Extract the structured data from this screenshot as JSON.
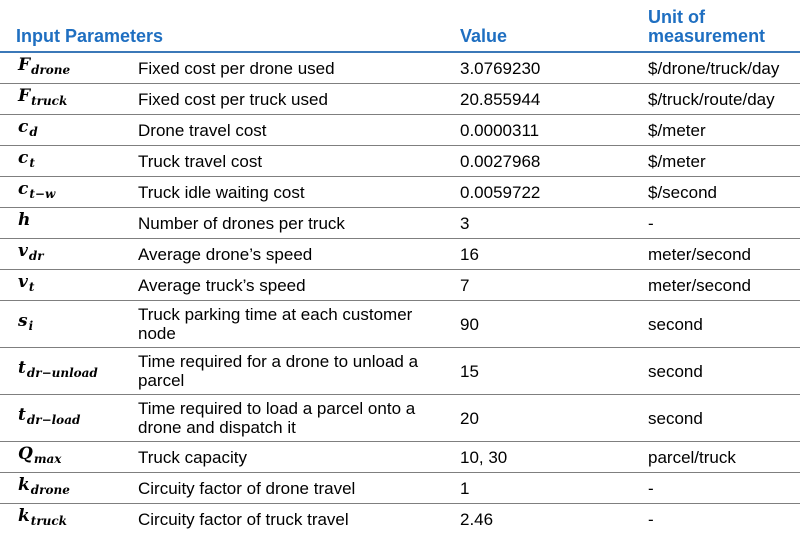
{
  "headers": {
    "param": "Input Parameters",
    "value": "Value",
    "unit": "Unit of measurement"
  },
  "rows": [
    {
      "symbol": "F",
      "sub": "drone",
      "desc": "Fixed cost per drone used",
      "value": "3.0769230",
      "unit": "$/drone/truck/day"
    },
    {
      "symbol": "F",
      "sub": "truck",
      "desc": "Fixed cost per truck used",
      "value": "20.855944",
      "unit": "$/truck/route/day"
    },
    {
      "symbol": "c",
      "sub": "d",
      "desc": "Drone travel cost",
      "value": "0.0000311",
      "unit": "$/meter"
    },
    {
      "symbol": "c",
      "sub": "t",
      "desc": "Truck travel cost",
      "value": "0.0027968",
      "unit": "$/meter"
    },
    {
      "symbol": "c",
      "sub": "t−w",
      "desc": "Truck idle waiting cost",
      "value": "0.0059722",
      "unit": "$/second"
    },
    {
      "symbol": "h",
      "sub": "",
      "desc": "Number of drones per truck",
      "value": "3",
      "unit": "-"
    },
    {
      "symbol": "v",
      "sub": "dr",
      "desc": "Average drone’s speed",
      "value": "16",
      "unit": "meter/second"
    },
    {
      "symbol": "v",
      "sub": "t",
      "desc": "Average truck’s speed",
      "value": "7",
      "unit": "meter/second"
    },
    {
      "symbol": "s",
      "sub": "i",
      "desc": "Truck parking time at each customer node",
      "value": "90",
      "unit": "second"
    },
    {
      "symbol": "t",
      "sub": "dr−unload",
      "desc": "Time required for a drone to unload a parcel",
      "value": "15",
      "unit": "second"
    },
    {
      "symbol": "t",
      "sub": "dr−load",
      "desc": "Time required to load a parcel onto a drone and dispatch it",
      "value": "20",
      "unit": "second"
    },
    {
      "symbol": "Q",
      "sub": "max",
      "desc": "Truck capacity",
      "value": "10, 30",
      "unit": "parcel/truck"
    },
    {
      "symbol": "k",
      "sub": "drone",
      "desc": "Circuity factor of drone travel",
      "value": "1",
      "unit": "-"
    },
    {
      "symbol": "k",
      "sub": "truck",
      "desc": "Circuity factor of truck travel",
      "value": "2.46",
      "unit": "-"
    }
  ]
}
